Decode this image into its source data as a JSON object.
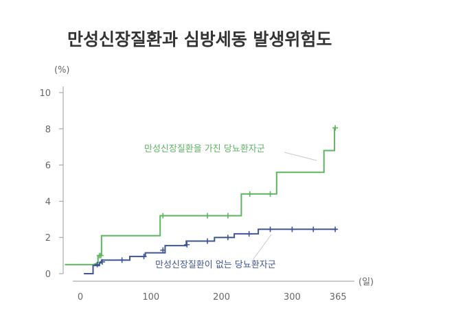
{
  "chart_data": {
    "type": "line",
    "title": "만성신장질환과 심방세동 발생위험도",
    "y_unit": "(%)",
    "x_unit": "(일)",
    "xlim": [
      0,
      365
    ],
    "ylim": [
      0,
      10
    ],
    "x_ticks": [
      0,
      100,
      200,
      300,
      365
    ],
    "y_ticks": [
      0,
      2,
      4,
      6,
      8,
      10
    ],
    "grid": false,
    "series": [
      {
        "name": "만성신장질환을 가진 당뇨환자군",
        "color": "#5ab55e",
        "step_points": [
          [
            -22,
            0.5
          ],
          [
            18,
            0.5
          ],
          [
            18,
            0.5
          ],
          [
            25,
            0.6
          ],
          [
            25,
            1.0
          ],
          [
            30,
            1.0
          ],
          [
            30,
            2.1
          ],
          [
            113,
            2.1
          ],
          [
            113,
            3.2
          ],
          [
            228,
            3.2
          ],
          [
            228,
            4.4
          ],
          [
            278,
            4.4
          ],
          [
            278,
            5.6
          ],
          [
            345,
            5.6
          ],
          [
            345,
            6.8
          ],
          [
            360,
            6.8
          ],
          [
            360,
            8.0
          ],
          [
            362,
            8.0
          ]
        ],
        "censor_x": [
          27,
          29,
          117,
          180,
          209,
          240,
          269,
          361
        ],
        "censor_y": [
          1.0,
          1.0,
          3.2,
          3.2,
          3.2,
          4.4,
          4.4,
          8.05
        ]
      },
      {
        "name": "만성신장질환이 없는 당뇨환자군",
        "color": "#3f5594",
        "step_points": [
          [
            5,
            0.0
          ],
          [
            18,
            0.0
          ],
          [
            18,
            0.45
          ],
          [
            27,
            0.45
          ],
          [
            27,
            0.6
          ],
          [
            30,
            0.6
          ],
          [
            30,
            0.75
          ],
          [
            70,
            0.75
          ],
          [
            70,
            0.95
          ],
          [
            92,
            0.95
          ],
          [
            92,
            1.15
          ],
          [
            120,
            1.15
          ],
          [
            120,
            1.55
          ],
          [
            150,
            1.55
          ],
          [
            150,
            1.8
          ],
          [
            190,
            1.8
          ],
          [
            190,
            2.0
          ],
          [
            218,
            2.0
          ],
          [
            218,
            2.2
          ],
          [
            252,
            2.2
          ],
          [
            252,
            2.45
          ],
          [
            363,
            2.45
          ]
        ],
        "censor_x": [
          24,
          31,
          59,
          90,
          117,
          151,
          180,
          209,
          239,
          269,
          300,
          330,
          361
        ],
        "censor_y": [
          0.5,
          0.65,
          0.75,
          0.95,
          1.3,
          1.6,
          1.8,
          2.0,
          2.2,
          2.45,
          2.45,
          2.45,
          2.45
        ]
      }
    ]
  }
}
